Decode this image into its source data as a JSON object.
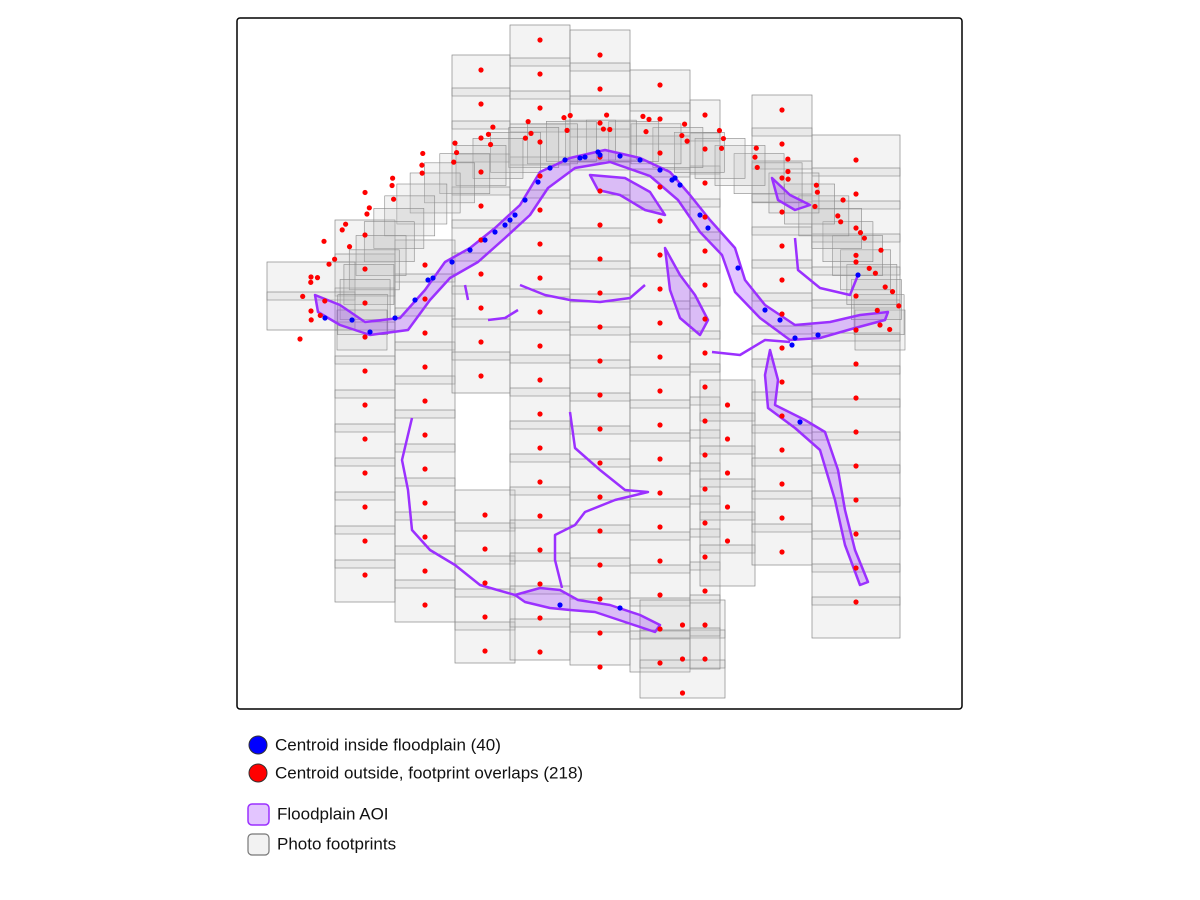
{
  "legend": {
    "items": [
      {
        "label": "Centroid inside floodplain (40)",
        "color": "#0000ff"
      },
      {
        "label": "Centroid outside, footprint overlaps (218)",
        "color": "#ff0000"
      },
      {
        "label": "Floodplain AOI",
        "color": "#9b30ff"
      },
      {
        "label": "Photo footprints",
        "color": "#e8e8e8"
      }
    ]
  }
}
